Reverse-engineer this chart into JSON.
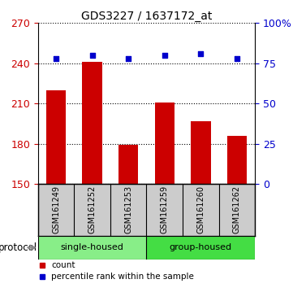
{
  "title": "GDS3227 / 1637172_at",
  "samples": [
    "GSM161249",
    "GSM161252",
    "GSM161253",
    "GSM161259",
    "GSM161260",
    "GSM161262"
  ],
  "counts": [
    220,
    241,
    179,
    211,
    197,
    186
  ],
  "percentile_ranks": [
    78,
    80,
    78,
    80,
    81,
    78
  ],
  "ylim_left": [
    150,
    270
  ],
  "yticks_left": [
    150,
    180,
    210,
    240,
    270
  ],
  "ylim_right": [
    0,
    100
  ],
  "yticks_right": [
    0,
    25,
    50,
    75,
    100
  ],
  "ytick_labels_right": [
    "0",
    "25",
    "50",
    "75",
    "100%"
  ],
  "bar_color": "#cc0000",
  "scatter_color": "#0000cc",
  "groups": [
    {
      "label": "single-housed",
      "indices": [
        0,
        1,
        2
      ],
      "color": "#88ee88"
    },
    {
      "label": "group-housed",
      "indices": [
        3,
        4,
        5
      ],
      "color": "#44dd44"
    }
  ],
  "group_label": "protocol",
  "left_axis_color": "#cc0000",
  "right_axis_color": "#0000cc",
  "sample_box_color": "#cccccc",
  "background_color": "#ffffff",
  "label_count": "count",
  "label_percentile": "percentile rank within the sample",
  "bar_width": 0.55
}
